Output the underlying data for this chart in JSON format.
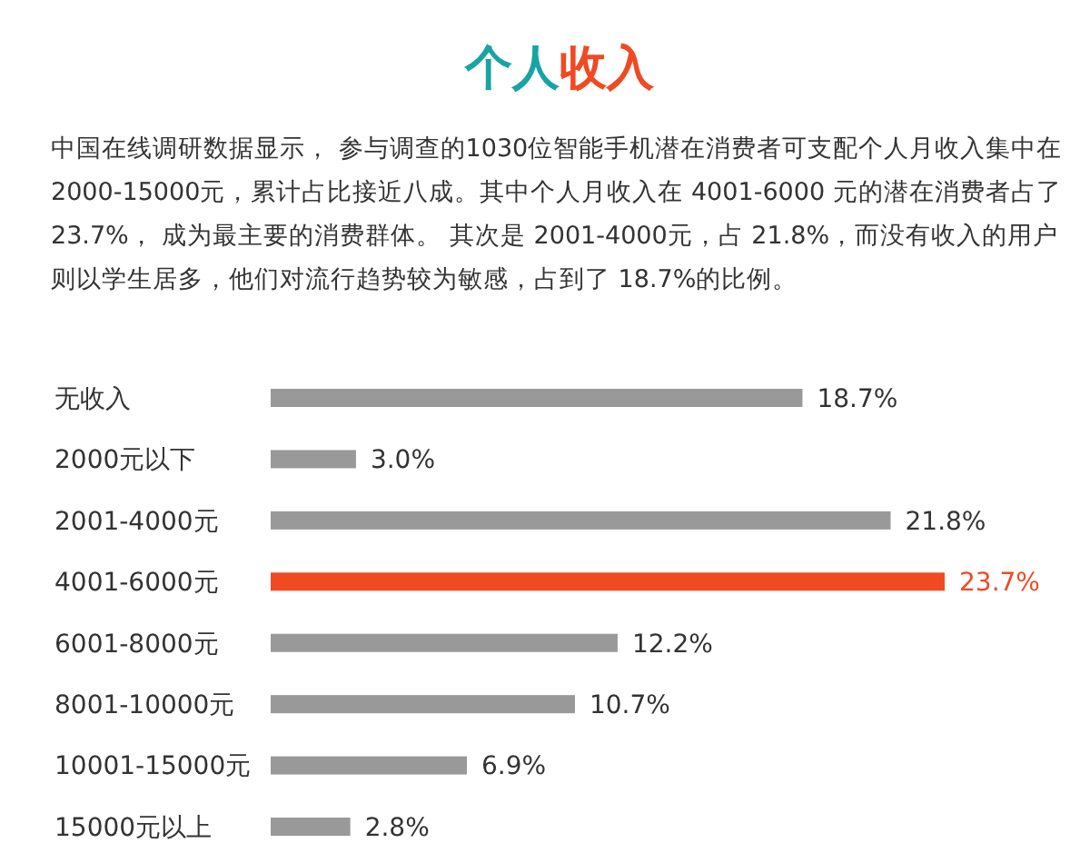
{
  "chart_data": {
    "type": "bar",
    "orientation": "horizontal",
    "title": "个人收入",
    "subtitle": "中国在线调研数据显示， 参与调查的1030位智能手机潜在消费者可支配个人月收入集中在2000-15000元，累计占比接近八成。其中个人月收入在 4001-6000 元的潜在消费者占了 23.7%， 成为最主要的消费群体。 其次是 2001-4000元，占 21.8%，而没有收入的用户则以学生居多，他们对流行趋势较为敏感，占到了 18.7%的比例。",
    "categories": [
      "无收入",
      "2000元以下",
      "2001-4000元",
      "4001-6000元",
      "6001-8000元",
      "8001-10000元",
      "10001-15000元",
      "15000元以上"
    ],
    "values": [
      18.7,
      3.0,
      21.8,
      23.7,
      12.2,
      10.7,
      6.9,
      2.8
    ],
    "value_labels": [
      "18.7%",
      "3.0%",
      "21.8%",
      "23.7%",
      "12.2%",
      "10.7%",
      "6.9%",
      "2.8%"
    ],
    "colors": [
      "#999999",
      "#999999",
      "#999999",
      "#f04a23",
      "#999999",
      "#999999",
      "#999999",
      "#999999"
    ]
  }
}
